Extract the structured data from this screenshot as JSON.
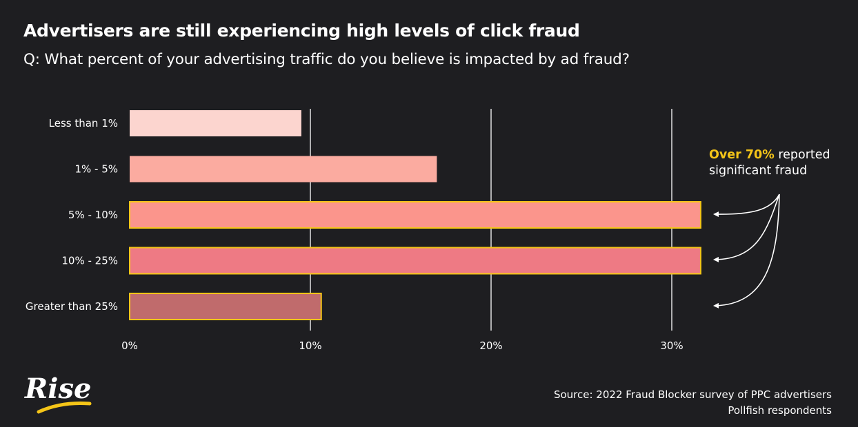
{
  "header": {
    "title": "Advertisers are still experiencing high levels of click fraud",
    "subtitle": "Q: What percent of your advertising traffic do you believe is impacted by ad fraud?"
  },
  "chart_data": {
    "type": "bar",
    "orientation": "horizontal",
    "categories": [
      "Less than 1%",
      "1% - 5%",
      "5% - 10%",
      "10% - 25%",
      "Greater than 25%"
    ],
    "values": [
      9.5,
      17,
      31.6,
      31.6,
      10.6
    ],
    "xlim": [
      0,
      35
    ],
    "xticks": [
      0,
      10,
      20,
      30
    ],
    "xtick_labels": [
      "0%",
      "10%",
      "20%",
      "30%"
    ],
    "grid": true,
    "highlighted_categories": [
      "5% - 10%",
      "10% - 25%",
      "Greater than 25%"
    ],
    "bar_colors": [
      "#fcd5cf",
      "#fbaba0",
      "#fb958c",
      "#ee7a84",
      "#c06b6c"
    ],
    "highlight_border_color": "#f5c518",
    "annotation": {
      "highlight": "Over 70%",
      "text_rest": " reported",
      "line2": "significant fraud"
    }
  },
  "source": {
    "line1": "Source: 2022 Fraud Blocker survey of PPC advertisers",
    "line2": "Pollfish respondents"
  },
  "logo": {
    "text": "Rise",
    "accent_color": "#f5c518"
  }
}
